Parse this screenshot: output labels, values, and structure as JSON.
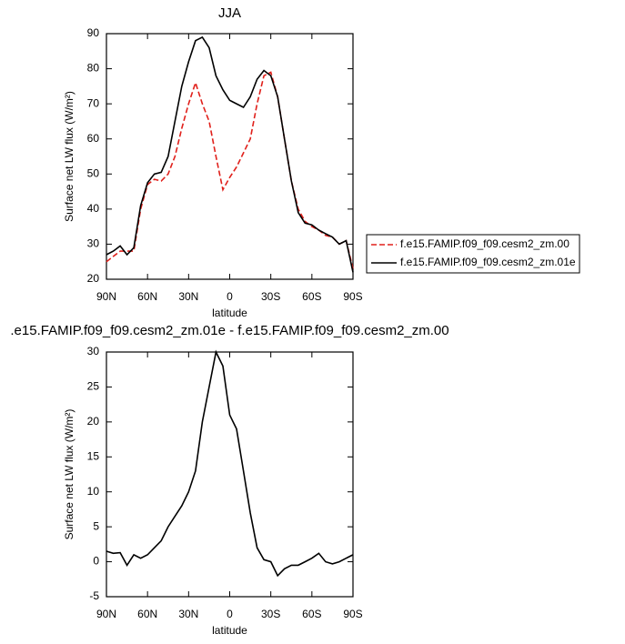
{
  "chart_data": [
    {
      "type": "line",
      "title": "JJA",
      "xlabel": "latitude",
      "ylabel": "Surface net LW flux (W/m²)",
      "x": [
        90,
        85,
        80,
        75,
        70,
        65,
        60,
        55,
        50,
        45,
        40,
        35,
        30,
        25,
        20,
        15,
        10,
        5,
        0,
        -5,
        -10,
        -15,
        -20,
        -25,
        -30,
        -35,
        -40,
        -45,
        -50,
        -55,
        -60,
        -65,
        -70,
        -75,
        -80,
        -85,
        -90
      ],
      "series": [
        {
          "name": "f.e15.FAMIP.f09_f09.cesm2_zm.00",
          "color": "#e0201b",
          "linestyle": "dashed",
          "values": [
            25,
            26.5,
            28,
            28,
            28,
            40,
            47,
            48.5,
            48,
            50,
            55,
            63,
            70,
            76,
            70,
            65,
            55,
            45.5,
            49,
            52,
            56,
            60,
            70,
            78,
            79,
            72,
            60,
            48,
            40,
            36.5,
            35,
            34,
            32.5,
            32,
            30,
            31,
            23
          ]
        },
        {
          "name": "f.e15.FAMIP.f09_f09.cesm2_zm.01e",
          "color": "#000000",
          "linestyle": "solid",
          "values": [
            27,
            28,
            29.5,
            27,
            29,
            41,
            47.5,
            50,
            50.5,
            55,
            65,
            75,
            82,
            88,
            89,
            86,
            78,
            74,
            71,
            70,
            69,
            72,
            77,
            79.5,
            78,
            72,
            60,
            48,
            39,
            36,
            35.5,
            34,
            33,
            32,
            30,
            31,
            22
          ]
        }
      ],
      "xlim": [
        90,
        -90
      ],
      "xticks": [
        {
          "value": 90,
          "label": "90N"
        },
        {
          "value": 60,
          "label": "60N"
        },
        {
          "value": 30,
          "label": "30N"
        },
        0,
        {
          "value": -30,
          "label": "30S"
        },
        {
          "value": -60,
          "label": "60S"
        },
        {
          "value": -90,
          "label": "90S"
        }
      ],
      "ylim": [
        20,
        90
      ],
      "yticks": [
        20,
        30,
        40,
        50,
        60,
        70,
        80,
        90
      ],
      "legend": "right"
    },
    {
      "type": "line",
      "title": ".e15.FAMIP.f09_f09.cesm2_zm.01e - f.e15.FAMIP.f09_f09.cesm2_zm.00",
      "xlabel": "latitude",
      "ylabel": "Surface net LW flux (W/m²)",
      "x": [
        90,
        85,
        80,
        75,
        70,
        65,
        60,
        55,
        50,
        45,
        40,
        35,
        30,
        25,
        20,
        15,
        10,
        5,
        0,
        -5,
        -10,
        -15,
        -20,
        -25,
        -30,
        -35,
        -40,
        -45,
        -50,
        -55,
        -60,
        -65,
        -70,
        -75,
        -80,
        -85,
        -90
      ],
      "series": [
        {
          "color": "#000000",
          "linestyle": "solid",
          "values": [
            1.5,
            1.2,
            1.3,
            -0.5,
            1,
            0.5,
            1,
            2,
            3,
            5,
            6.5,
            8,
            10,
            13,
            20,
            25,
            30,
            28,
            21,
            19,
            13,
            7,
            2,
            0.3,
            0,
            -2,
            -1,
            -0.5,
            -0.5,
            0,
            0.5,
            1.2,
            0,
            -0.3,
            0,
            0.5,
            1
          ]
        }
      ],
      "xlim": [
        90,
        -90
      ],
      "xticks": [
        {
          "value": 90,
          "label": "90N"
        },
        {
          "value": 60,
          "label": "60N"
        },
        {
          "value": 30,
          "label": "30N"
        },
        0,
        {
          "value": -30,
          "label": "30S"
        },
        {
          "value": -60,
          "label": "60S"
        },
        {
          "value": -90,
          "label": "90S"
        }
      ],
      "ylim": [
        -5,
        30
      ],
      "yticks": [
        -5,
        0,
        5,
        10,
        15,
        20,
        25,
        30
      ]
    }
  ]
}
